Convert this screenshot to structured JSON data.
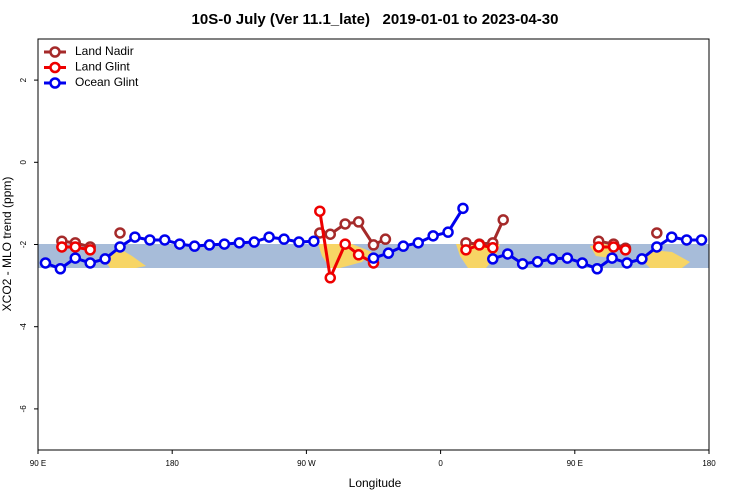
{
  "chart_data": {
    "type": "line",
    "title": "10S-0 July (Ver 11.1_late)   2019-01-01 to 2023-04-30",
    "x_label": "Longitude",
    "y_label": "XCO2 - MLO trend (ppm)",
    "xlim": [
      90,
      540
    ],
    "xticks": [
      {
        "value": 90,
        "label": "90 E"
      },
      {
        "value": 180,
        "label": "180"
      },
      {
        "value": 270,
        "label": "90 W"
      },
      {
        "value": 360,
        "label": "0"
      },
      {
        "value": 450,
        "label": "90 E"
      },
      {
        "value": 540,
        "label": "180"
      }
    ],
    "ylim": [
      -7,
      3
    ],
    "yticks": [
      -6,
      -4,
      -2,
      0,
      2
    ],
    "legend": "top-left",
    "series": [
      {
        "name": "Land Nadir",
        "color": "#a52a2a",
        "x": [
          106,
          115,
          125,
          null,
          145,
          null,
          279,
          286,
          296,
          305,
          315,
          323,
          null,
          377,
          386,
          395,
          402,
          null,
          466,
          476,
          484,
          null,
          505
        ],
        "values": [
          -1.92,
          -1.96,
          -2.06,
          null,
          -1.72,
          null,
          -1.72,
          -1.75,
          -1.5,
          -1.45,
          -2.01,
          -1.87,
          null,
          -1.96,
          -1.99,
          -1.96,
          -1.4,
          null,
          -1.92,
          -1.99,
          -2.09,
          null,
          -1.72
        ]
      },
      {
        "name": "Land Glint",
        "color": "#ee0000",
        "x": [
          106,
          115,
          125,
          null,
          279,
          286,
          296,
          305,
          315,
          null,
          377,
          386,
          395,
          null,
          466,
          476,
          484
        ],
        "values": [
          -2.06,
          -2.06,
          -2.13,
          null,
          -1.19,
          -2.81,
          -1.99,
          -2.25,
          -2.45,
          null,
          -2.13,
          -2.01,
          -2.08,
          null,
          -2.06,
          -2.06,
          -2.13
        ]
      },
      {
        "name": "Ocean Glint",
        "color": "#0000ee",
        "x": [
          95,
          105,
          115,
          125,
          135,
          145,
          155,
          165,
          175,
          185,
          195,
          205,
          215,
          225,
          235,
          245,
          255,
          265,
          275,
          285,
          295,
          305,
          315,
          325,
          335,
          345,
          355,
          365,
          375,
          385,
          395,
          405,
          415,
          425,
          435,
          445,
          455,
          465,
          475,
          485,
          495,
          505,
          515,
          525,
          535
        ],
        "values": [
          -2.45,
          -2.59,
          -2.33,
          -2.45,
          -2.35,
          -2.06,
          -1.82,
          -1.89,
          -1.89,
          -1.99,
          -2.04,
          -2.01,
          -1.99,
          -1.96,
          -1.94,
          -1.82,
          -1.87,
          -1.94,
          -1.92,
          null,
          null,
          null,
          -2.33,
          -2.21,
          -2.04,
          -1.96,
          -1.79,
          -1.7,
          -1.12,
          null,
          -2.35,
          -2.23,
          -2.47,
          -2.42,
          -2.35,
          -2.33,
          -2.45,
          -2.59,
          -2.33,
          -2.45,
          -2.35,
          -2.06,
          -1.82,
          -1.89,
          -1.89
        ]
      }
    ]
  }
}
